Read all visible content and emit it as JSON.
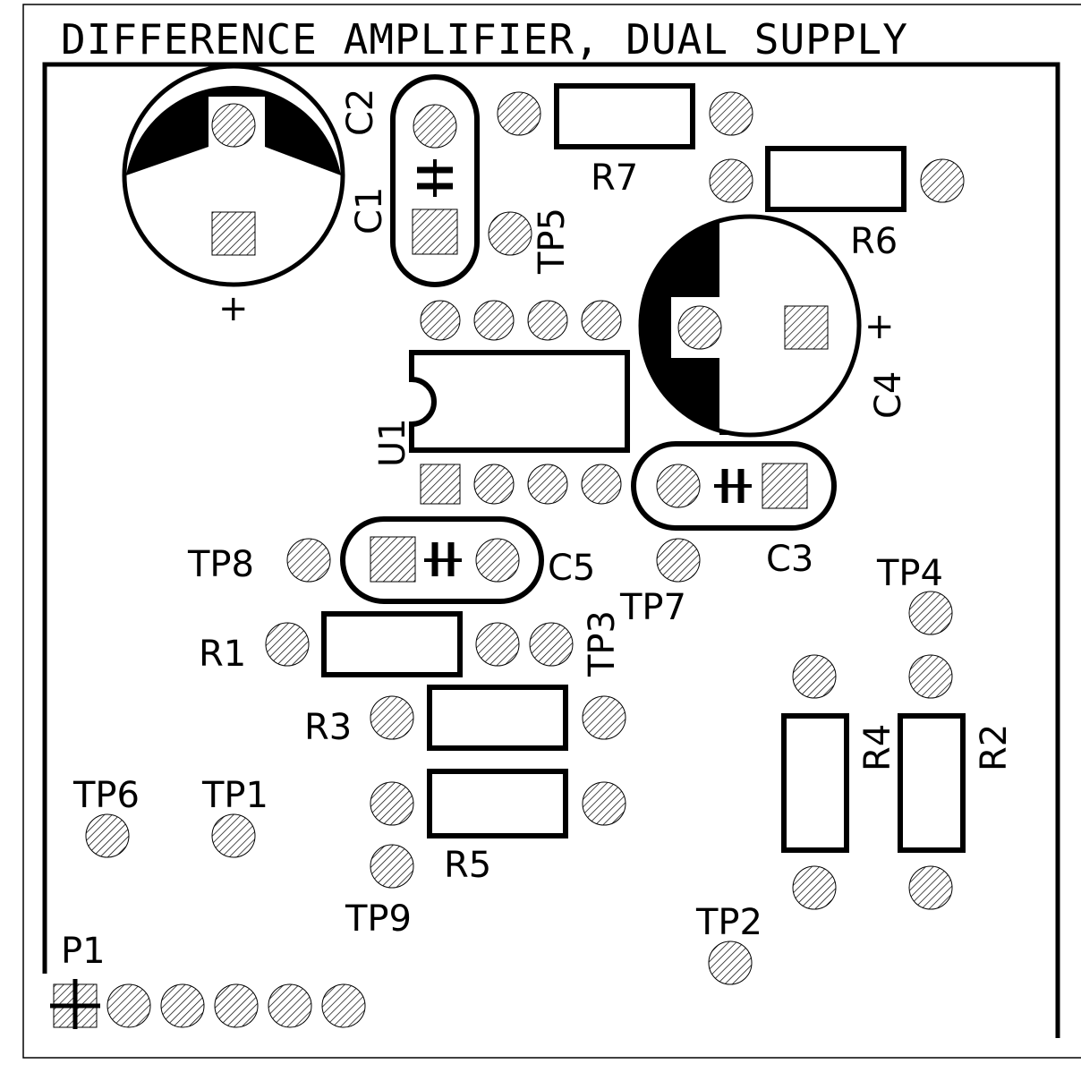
{
  "title": "DIFFERENCE AMPLIFIER, DUAL SUPPLY",
  "components": {
    "C1": "C1",
    "C2": "C2",
    "C3": "C3",
    "C4": "C4",
    "C5": "C5",
    "R1": "R1",
    "R2": "R2",
    "R3": "R3",
    "R4": "R4",
    "R5": "R5",
    "R6": "R6",
    "R7": "R7",
    "U1": "U1",
    "P1": "P1",
    "TP1": "TP1",
    "TP2": "TP2",
    "TP3": "TP3",
    "TP4": "TP4",
    "TP5": "TP5",
    "TP6": "TP6",
    "TP7": "TP7",
    "TP8": "TP8",
    "TP9": "TP9"
  },
  "polarity": {
    "plus": "+"
  },
  "colors": {
    "ink": "#000000",
    "paper": "#ffffff",
    "pad_hatch": "#000000"
  }
}
